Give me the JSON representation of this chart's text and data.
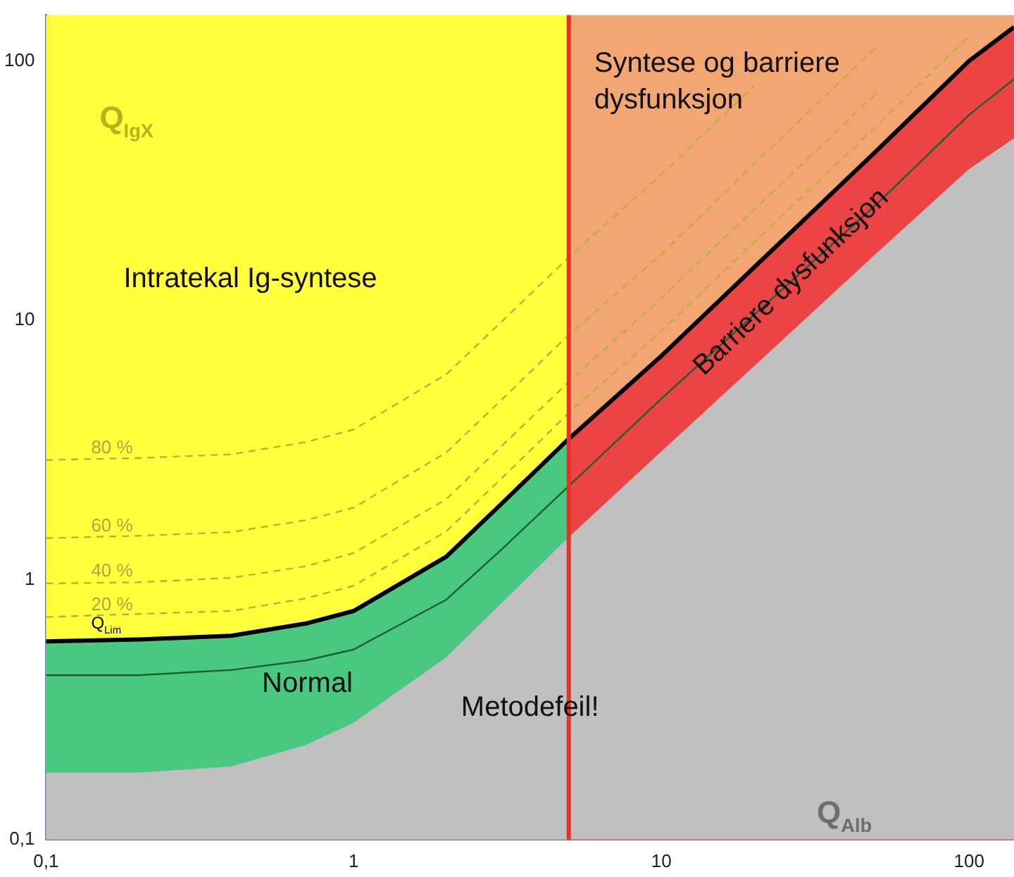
{
  "chart_data": {
    "type": "area",
    "xlabel": "Q$_{Alb}$",
    "ylabel": "Q$_{IgX}$",
    "log": "xy",
    "grid": false,
    "legend": false,
    "marker": "none",
    "xlim": [
      0.1,
      140
    ],
    "ylim": [
      0.1,
      150
    ],
    "xticks": [
      {
        "value": 0.1,
        "label": "0,1"
      },
      1,
      10,
      100
    ],
    "yticks": [
      {
        "value": 0.1,
        "label": "0,1"
      },
      1,
      10,
      100
    ],
    "bands": [
      {
        "axis": "x",
        "from": 0.1,
        "to": 5,
        "label": "Intratekal Ig-syntese",
        "color": "#ffff3c"
      },
      {
        "axis": "x",
        "from": 5,
        "to": 140,
        "label": "Syntese og barriere dysfunksjon",
        "color": "#f2a672"
      }
    ],
    "ref_lines": [
      {
        "axis": "x",
        "value": 5,
        "color": "#e8302a"
      }
    ],
    "series": [
      {
        "name": "Normal",
        "color": "#48c880",
        "x": [
          0.1,
          0.2,
          0.4,
          0.7,
          1,
          2,
          3,
          5
        ],
        "values": [
          0.58,
          0.59,
          0.61,
          0.68,
          0.76,
          1.23,
          1.95,
          3.5
        ]
      },
      {
        "name": "Barriere dysfunksjon",
        "color": "#ec4444",
        "x": [
          5,
          10,
          20,
          50,
          100,
          140
        ],
        "values": [
          3.5,
          7.3,
          16,
          45,
          100,
          135
        ]
      },
      {
        "name": "Metodefeil!",
        "color": "#c0c0c0",
        "x": [
          0.1,
          0.2,
          0.4,
          0.7,
          1,
          2,
          3,
          5,
          10,
          20,
          50,
          100,
          140
        ],
        "values": [
          0.18,
          0.18,
          0.19,
          0.23,
          0.28,
          0.5,
          0.8,
          1.45,
          3.1,
          6.6,
          18,
          38,
          50
        ]
      },
      {
        "type": "line",
        "color": "#1d5e34",
        "line_style": "solid",
        "x": [
          0.1,
          0.2,
          0.4,
          0.7,
          1,
          2,
          3,
          5,
          10,
          20,
          50,
          100,
          140
        ],
        "values": [
          0.43,
          0.43,
          0.45,
          0.49,
          0.54,
          0.84,
          1.3,
          2.3,
          5,
          10.5,
          28,
          62,
          85
        ]
      },
      {
        "name": "Q$_{Lim}$",
        "type": "line",
        "color": "#000000",
        "line_style": "solid",
        "x": [
          0.1,
          0.2,
          0.4,
          0.7,
          1,
          2,
          3,
          5,
          10,
          20,
          50,
          100,
          140
        ],
        "values": [
          0.58,
          0.59,
          0.61,
          0.68,
          0.76,
          1.23,
          1.95,
          3.5,
          7.3,
          16,
          45,
          100,
          135
        ]
      },
      {
        "name": "20 %",
        "type": "line",
        "color": "#bfae3a",
        "line_style": "dashed",
        "x": [
          0.1,
          0.2,
          0.4,
          0.7,
          1,
          2,
          3,
          5,
          10,
          20,
          50,
          100
        ],
        "values": [
          0.72,
          0.74,
          0.76,
          0.85,
          0.95,
          1.54,
          2.44,
          4.4,
          9.1,
          20,
          56,
          125
        ]
      },
      {
        "name": "40 %",
        "type": "line",
        "color": "#bfae3a",
        "line_style": "dashed",
        "x": [
          0.1,
          0.2,
          0.4,
          0.7,
          1,
          2,
          3,
          5,
          10,
          20,
          50
        ],
        "values": [
          0.97,
          0.98,
          1.02,
          1.13,
          1.27,
          2.05,
          3.25,
          5.8,
          12.2,
          26.7,
          75
        ]
      },
      {
        "name": "60 %",
        "type": "line",
        "color": "#bfae3a",
        "line_style": "dashed",
        "x": [
          0.1,
          0.2,
          0.4,
          0.7,
          1,
          2,
          3,
          5,
          10,
          20,
          50
        ],
        "values": [
          1.45,
          1.48,
          1.53,
          1.7,
          1.9,
          3.1,
          4.9,
          8.8,
          18,
          40,
          113
        ]
      },
      {
        "name": "80 %",
        "type": "line",
        "color": "#bfae3a",
        "line_style": "dashed",
        "x": [
          0.1,
          0.2,
          0.4,
          0.7,
          1,
          2,
          3,
          5,
          10,
          20
        ],
        "values": [
          2.9,
          2.95,
          3.05,
          3.4,
          3.8,
          6.2,
          9.8,
          17.5,
          36.5,
          80
        ]
      }
    ]
  }
}
